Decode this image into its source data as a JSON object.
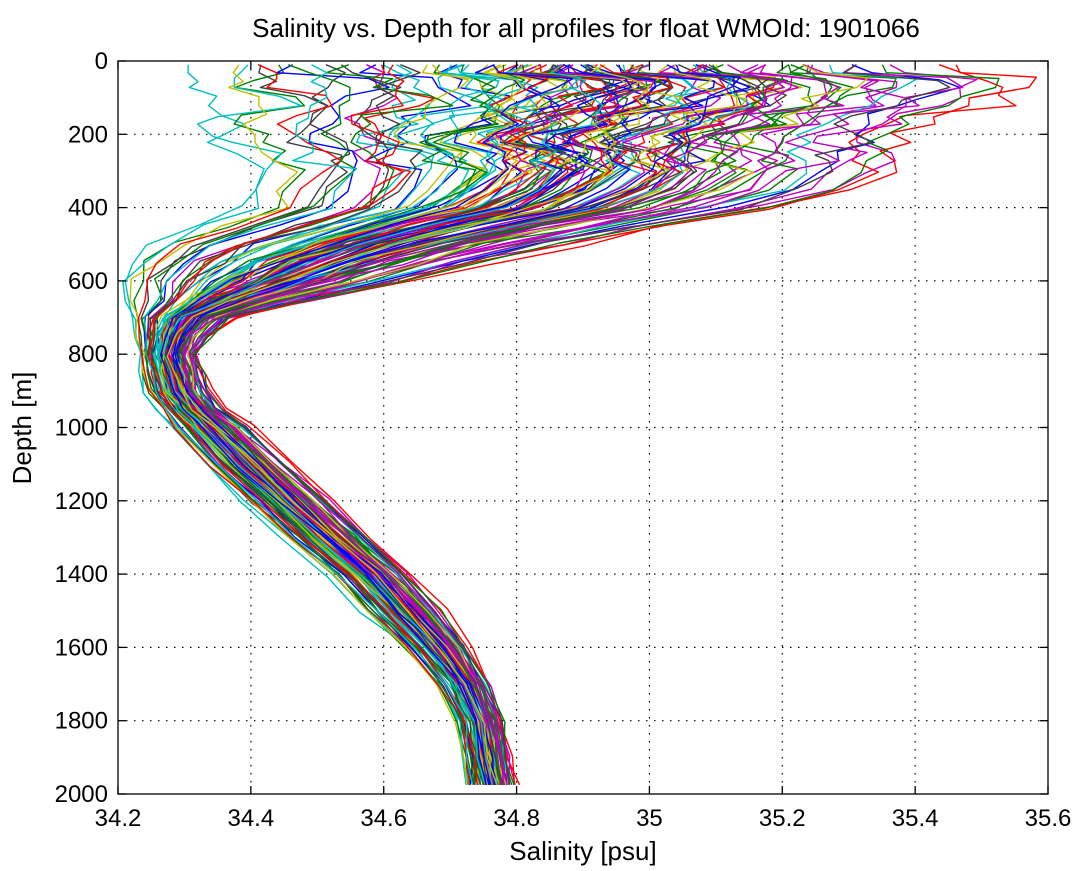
{
  "chart_data": {
    "type": "line",
    "title": "Salinity vs. Depth for all profiles for float WMOId: 1901066",
    "xlabel": "Salinity [psu]",
    "ylabel": "Depth [m]",
    "xlim": [
      34.2,
      35.6
    ],
    "ylim": [
      0,
      2000
    ],
    "y_reversed": true,
    "grid": true,
    "legend": "none",
    "x_ticks": [
      34.2,
      34.4,
      34.6,
      34.8,
      35.0,
      35.2,
      35.4,
      35.6
    ],
    "x_tick_labels": [
      "34.2",
      "34.4",
      "34.6",
      "34.8",
      "35",
      "35.2",
      "35.4",
      "35.6"
    ],
    "y_ticks": [
      0,
      200,
      400,
      600,
      800,
      1000,
      1200,
      1400,
      1600,
      1800,
      2000
    ],
    "y_tick_labels": [
      "0",
      "200",
      "400",
      "600",
      "800",
      "1000",
      "1200",
      "1400",
      "1600",
      "1800",
      "2000"
    ],
    "colors": [
      "#0000ff",
      "#008000",
      "#ff0000",
      "#00bfbf",
      "#bf00bf",
      "#bfbf00",
      "#404040"
    ],
    "profile_depths": [
      10,
      50,
      100,
      150,
      200,
      250,
      300,
      350,
      400,
      450,
      500,
      550,
      600,
      650,
      700,
      750,
      800,
      850,
      900,
      950,
      1000,
      1100,
      1200,
      1300,
      1400,
      1500,
      1600,
      1700,
      1800,
      1900,
      1975
    ],
    "envelope": {
      "min_salinity": [
        34.34,
        34.36,
        34.38,
        34.36,
        34.34,
        34.4,
        34.42,
        34.4,
        34.4,
        34.33,
        34.25,
        34.22,
        34.21,
        34.215,
        34.22,
        34.225,
        34.23,
        34.235,
        34.24,
        34.26,
        34.28,
        34.33,
        34.39,
        34.45,
        34.52,
        34.57,
        34.63,
        34.68,
        34.71,
        34.72,
        34.725
      ],
      "max_salinity": [
        35.43,
        35.55,
        35.52,
        35.45,
        35.38,
        35.37,
        35.36,
        35.31,
        35.2,
        35.03,
        34.89,
        34.76,
        34.64,
        34.5,
        34.38,
        34.34,
        34.32,
        34.33,
        34.34,
        34.36,
        34.4,
        34.46,
        34.52,
        34.58,
        34.64,
        34.69,
        34.73,
        34.76,
        34.78,
        34.79,
        34.8
      ]
    },
    "profile_count": 120
  }
}
